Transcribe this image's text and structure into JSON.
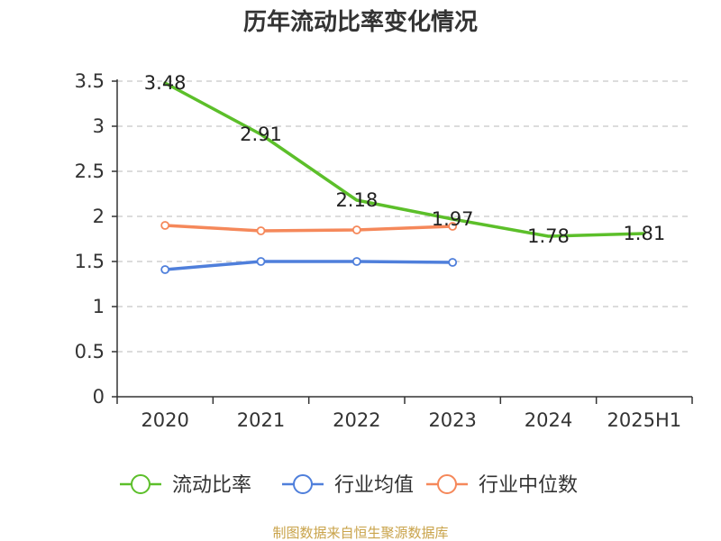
{
  "chart_data": {
    "type": "line",
    "title": "历年流动比率变化情况",
    "categories": [
      "2020",
      "2021",
      "2022",
      "2023",
      "2024",
      "2025H1"
    ],
    "ylim": [
      0,
      3.5
    ],
    "yticks": [
      "0",
      "0.5",
      "1",
      "1.5",
      "2",
      "2.5",
      "3",
      "3.5"
    ],
    "grid": true,
    "legend_position": "bottom",
    "series": [
      {
        "name": "流动比率",
        "color": "#5cbf2a",
        "values": [
          3.48,
          2.91,
          2.18,
          1.97,
          1.78,
          1.81
        ],
        "labels": [
          "3.48",
          "2.91",
          "2.18",
          "1.97",
          "1.78",
          "1.81"
        ],
        "show_markers": false
      },
      {
        "name": "行业均值",
        "color": "#4f7fdb",
        "values": [
          1.41,
          1.5,
          1.5,
          1.49,
          null,
          null
        ],
        "show_markers": true
      },
      {
        "name": "行业中位数",
        "color": "#f5885a",
        "values": [
          1.9,
          1.84,
          1.85,
          1.89,
          null,
          null
        ],
        "show_markers": true
      }
    ],
    "source": "制图数据来自恒生聚源数据库"
  }
}
